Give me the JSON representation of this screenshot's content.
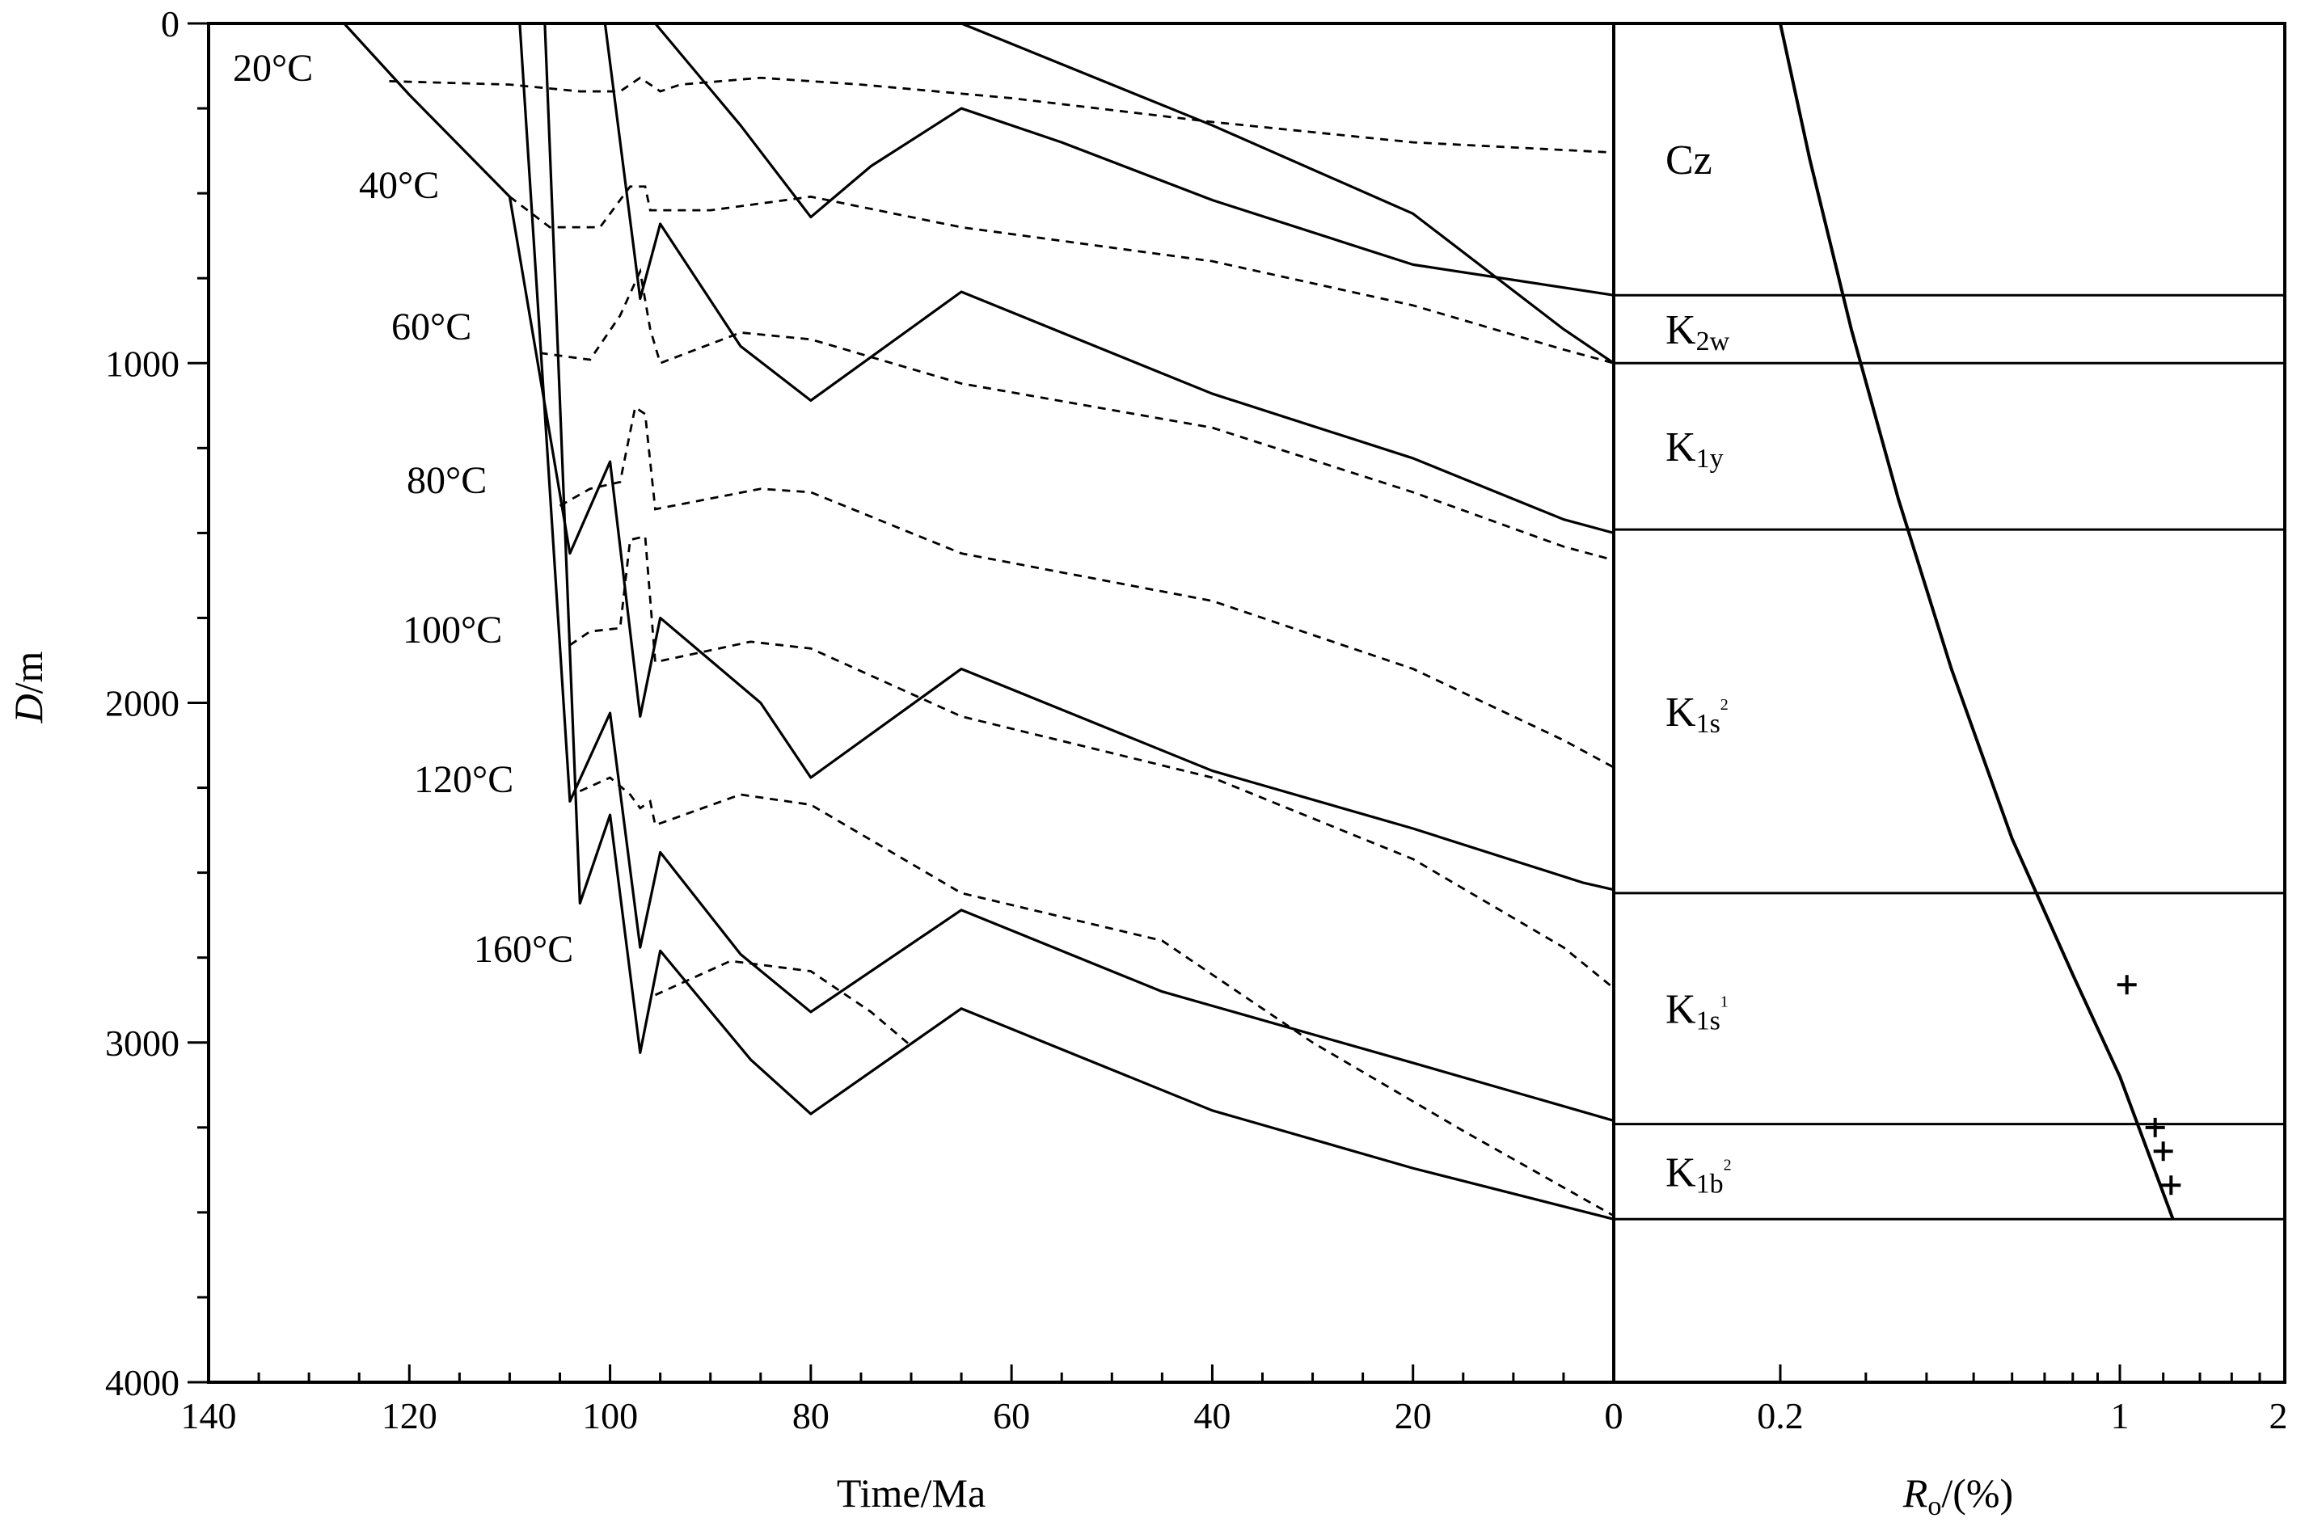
{
  "chart_data": [
    {
      "type": "line",
      "subtype": "burial-history",
      "xlabel": "Time/Ma",
      "ylabel": "D/m",
      "xlim": [
        140,
        0
      ],
      "ylim": [
        4000,
        0
      ],
      "x_ticks": [
        "140",
        "120",
        "100",
        "80",
        "60",
        "40",
        "20",
        "0"
      ],
      "y_ticks": [
        "0",
        "1000",
        "2000",
        "3000",
        "4000"
      ],
      "grid": false,
      "burial_curves": [
        {
          "points": [
            [
              127.3,
              0
            ],
            [
              128,
              0
            ]
          ]
        },
        {
          "points": [
            [
              126.5,
              0
            ],
            [
              120,
              210
            ],
            [
              110,
              510
            ],
            [
              104,
              1560
            ],
            [
              100,
              1290
            ],
            [
              97,
              2040
            ],
            [
              95,
              1750
            ],
            [
              85,
              2000
            ],
            [
              80,
              2220
            ],
            [
              65,
              1900
            ],
            [
              40,
              2200
            ],
            [
              20,
              2370
            ],
            [
              3,
              2530
            ],
            [
              0,
              2550
            ]
          ]
        },
        {
          "points": [
            [
              109,
              0
            ],
            [
              104,
              2290
            ],
            [
              100,
              2030
            ],
            [
              97,
              2720
            ],
            [
              95,
              2440
            ],
            [
              87,
              2740
            ],
            [
              80,
              2910
            ],
            [
              65,
              2610
            ],
            [
              45,
              2850
            ],
            [
              20,
              3060
            ],
            [
              0,
              3230
            ]
          ]
        },
        {
          "points": [
            [
              106.5,
              0
            ],
            [
              103,
              2590
            ],
            [
              100,
              2330
            ],
            [
              97,
              3030
            ],
            [
              95,
              2730
            ],
            [
              86,
              3050
            ],
            [
              80,
              3210
            ],
            [
              65,
              2900
            ],
            [
              40,
              3200
            ],
            [
              20,
              3370
            ],
            [
              0,
              3520
            ]
          ]
        },
        {
          "points": [
            [
              100.5,
              0
            ],
            [
              97,
              810
            ],
            [
              95,
              590
            ],
            [
              87,
              950
            ],
            [
              80,
              1110
            ],
            [
              65,
              790
            ],
            [
              40,
              1090
            ],
            [
              20,
              1280
            ],
            [
              5,
              1460
            ],
            [
              0,
              1500
            ]
          ]
        },
        {
          "points": [
            [
              95.5,
              0
            ],
            [
              87,
              300
            ],
            [
              80,
              570
            ],
            [
              74,
              420
            ],
            [
              65,
              250
            ],
            [
              55,
              350
            ],
            [
              40,
              520
            ],
            [
              20,
              710
            ],
            [
              0,
              800
            ]
          ]
        },
        {
          "points": [
            [
              65,
              0
            ],
            [
              40,
              300
            ],
            [
              20,
              560
            ],
            [
              5,
              900
            ],
            [
              0,
              1000
            ]
          ]
        }
      ],
      "isotherms": [
        {
          "label": "20°C",
          "points": [
            [
              122,
              170
            ],
            [
              110,
              180
            ],
            [
              103,
              200
            ],
            [
              99,
              200
            ],
            [
              97,
              160
            ],
            [
              95,
              200
            ],
            [
              93,
              180
            ],
            [
              85,
              160
            ],
            [
              75,
              180
            ],
            [
              60,
              220
            ],
            [
              40,
              290
            ],
            [
              20,
              350
            ],
            [
              0,
              380
            ]
          ]
        },
        {
          "points": [
            [
              110,
              510
            ],
            [
              106,
              600
            ],
            [
              101,
              600
            ],
            [
              98,
              480
            ],
            [
              96.5,
              480
            ],
            [
              96,
              550
            ],
            [
              90,
              550
            ],
            [
              80,
              510
            ],
            [
              65,
              600
            ],
            [
              40,
              700
            ],
            [
              20,
              830
            ],
            [
              5,
              960
            ],
            [
              0,
              1000
            ]
          ]
        },
        {
          "points": [
            [
              107,
              970
            ],
            [
              102,
              990
            ],
            [
              99,
              860
            ],
            [
              97,
              730
            ],
            [
              96,
              900
            ],
            [
              95,
              1000
            ],
            [
              87,
              910
            ],
            [
              80,
              930
            ],
            [
              65,
              1060
            ],
            [
              40,
              1190
            ],
            [
              20,
              1380
            ],
            [
              5,
              1540
            ],
            [
              0,
              1580
            ]
          ]
        },
        {
          "points": [
            [
              105,
              1420
            ],
            [
              102,
              1370
            ],
            [
              99,
              1350
            ],
            [
              97.5,
              1130
            ],
            [
              96.5,
              1150
            ],
            [
              95.5,
              1430
            ],
            [
              85,
              1370
            ],
            [
              80,
              1380
            ],
            [
              65,
              1560
            ],
            [
              40,
              1700
            ],
            [
              20,
              1900
            ],
            [
              5,
              2110
            ],
            [
              0,
              2190
            ]
          ]
        },
        {
          "points": [
            [
              104,
              1830
            ],
            [
              102,
              1790
            ],
            [
              99,
              1780
            ],
            [
              98,
              1520
            ],
            [
              96.5,
              1510
            ],
            [
              95.5,
              1880
            ],
            [
              86,
              1820
            ],
            [
              80,
              1840
            ],
            [
              65,
              2040
            ],
            [
              40,
              2220
            ],
            [
              20,
              2460
            ],
            [
              5,
              2720
            ],
            [
              0,
              2840
            ]
          ]
        },
        {
          "points": [
            [
              103,
              2260
            ],
            [
              100,
              2220
            ],
            [
              98,
              2270
            ],
            [
              97,
              2310
            ],
            [
              96,
              2290
            ],
            [
              95.5,
              2360
            ],
            [
              87,
              2270
            ],
            [
              80,
              2300
            ],
            [
              65,
              2560
            ],
            [
              45,
              2700
            ],
            [
              30,
              3000
            ],
            [
              15,
              3260
            ],
            [
              0,
              3510
            ]
          ]
        },
        {
          "points": [
            [
              95.5,
              2860
            ],
            [
              88,
              2760
            ],
            [
              80,
              2790
            ],
            [
              74,
              2910
            ],
            [
              70,
              3010
            ]
          ]
        }
      ],
      "isotherm_labels": [
        "20°C",
        "40°C",
        "60°C",
        "80°C",
        "100°C",
        "120°C",
        "160°C"
      ],
      "formations": [
        {
          "name": "Cz",
          "main": "Cz",
          "sub": "",
          "sup": ""
        },
        {
          "name": "K2w",
          "main": "K",
          "sub": "2w",
          "sup": ""
        },
        {
          "name": "K1y",
          "main": "K",
          "sub": "1y",
          "sup": ""
        },
        {
          "name": "K1s2",
          "main": "K",
          "sub": "1s",
          "sup": "2"
        },
        {
          "name": "K1s1",
          "main": "K",
          "sub": "1s",
          "sup": "1"
        },
        {
          "name": "K1b2",
          "main": "K",
          "sub": "1b",
          "sup": "2"
        }
      ],
      "formation_boundaries_depth_m": [
        800,
        1000,
        1490,
        2560,
        3240,
        3520
      ]
    },
    {
      "type": "line",
      "subtype": "vitrinite-reflectance-profile",
      "xlabel": "Ro/(%)",
      "xlabel_main": "R",
      "xlabel_sub": "o",
      "xlabel_rest": "/(%)",
      "x_scale": "log",
      "xlim": [
        0.1,
        2
      ],
      "x_ticks": [
        "0",
        "0.2",
        "1",
        "2"
      ],
      "ylim": [
        4000,
        0
      ],
      "model_curve": [
        [
          0.2,
          0
        ],
        [
          0.23,
          400
        ],
        [
          0.28,
          900
        ],
        [
          0.35,
          1400
        ],
        [
          0.45,
          1900
        ],
        [
          0.6,
          2400
        ],
        [
          0.8,
          2800
        ],
        [
          1.0,
          3100
        ],
        [
          1.25,
          3520
        ]
      ],
      "measured": [
        [
          1.03,
          2830
        ],
        [
          1.16,
          3250
        ],
        [
          1.2,
          3320
        ],
        [
          1.24,
          3420
        ]
      ]
    }
  ]
}
